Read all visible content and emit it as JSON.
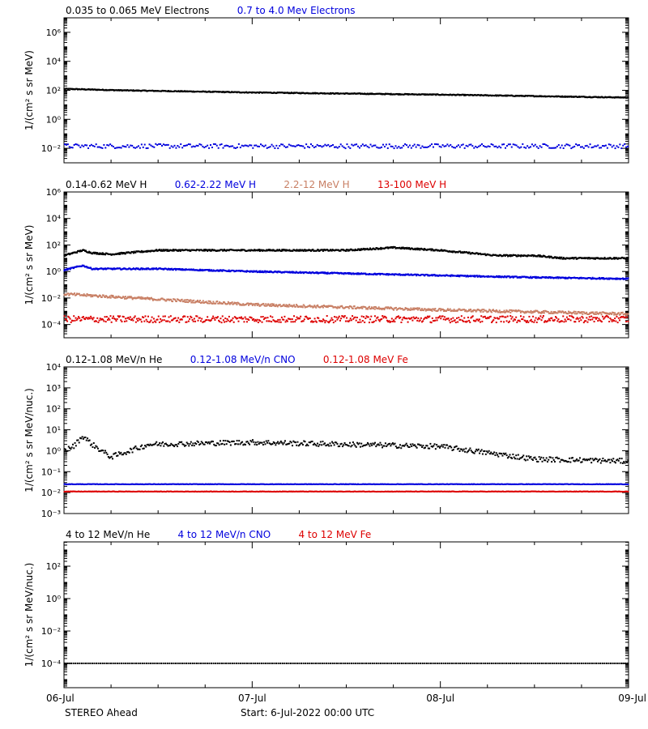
{
  "figure": {
    "footer_left": "STEREO Ahead",
    "footer_start": "Start:  6-Jul-2022 00:00 UTC"
  },
  "colors": {
    "black": "#000000",
    "blue": "#0000dd",
    "tan": "#c87f64",
    "red": "#dd0000"
  },
  "chart_data": [
    {
      "type": "scatter",
      "ylabel": "1/(cm² s sr MeV)",
      "yscale": "log",
      "ylim_exp": [
        -3,
        7
      ],
      "major_ticks_exp": [
        -2,
        0,
        2,
        4,
        6
      ],
      "tick_labels": [
        "10⁻²",
        "10⁰",
        "10²",
        "10⁴",
        "10⁶"
      ],
      "xlim_days": [
        0,
        3
      ],
      "x_tick_labels": [
        "06-Jul",
        "07-Jul",
        "08-Jul",
        "09-Jul"
      ],
      "legend": [
        {
          "name": "0.035 to 0.065 MeV Electrons",
          "color": "#000000"
        },
        {
          "name": "0.7 to 4.0 Mev Electrons",
          "color": "#0000dd"
        }
      ],
      "series": [
        {
          "name": "0.035 to 0.065 MeV Electrons",
          "color": "#000000",
          "points_per_day": 280,
          "jitter": 0.03,
          "log10_profile": [
            [
              0,
              2.1
            ],
            [
              0.3,
              2.0
            ],
            [
              1.0,
              1.85
            ],
            [
              2.0,
              1.7
            ],
            [
              3.0,
              1.5
            ]
          ]
        },
        {
          "name": "0.7 to 4.0 Mev Electrons",
          "color": "#0000dd",
          "points_per_day": 120,
          "jitter": 0.15,
          "log10_profile": [
            [
              0,
              -1.85
            ],
            [
              3.0,
              -1.85
            ]
          ]
        }
      ]
    },
    {
      "type": "scatter",
      "ylabel": "1/(cm² s sr MeV)",
      "yscale": "log",
      "ylim_exp": [
        -5,
        6
      ],
      "major_ticks_exp": [
        -4,
        -2,
        0,
        2,
        4,
        6
      ],
      "tick_labels": [
        "10⁻⁴",
        "10⁻²",
        "10⁰",
        "10²",
        "10⁴",
        "10⁶"
      ],
      "xlim_days": [
        0,
        3
      ],
      "x_tick_labels": [
        "06-Jul",
        "07-Jul",
        "08-Jul",
        "09-Jul"
      ],
      "legend": [
        {
          "name": "0.14-0.62 MeV H",
          "color": "#000000"
        },
        {
          "name": "0.62-2.22 MeV H",
          "color": "#0000dd"
        },
        {
          "name": "2.2-12 MeV H",
          "color": "#c87f64"
        },
        {
          "name": "13-100 MeV H",
          "color": "#dd0000"
        }
      ],
      "series": [
        {
          "name": "0.14-0.62 MeV H",
          "color": "#000000",
          "points_per_day": 280,
          "jitter": 0.06,
          "log10_profile": [
            [
              0,
              1.2
            ],
            [
              0.1,
              1.6
            ],
            [
              0.15,
              1.4
            ],
            [
              0.25,
              1.3
            ],
            [
              0.5,
              1.6
            ],
            [
              1.5,
              1.6
            ],
            [
              1.75,
              1.8
            ],
            [
              2.0,
              1.6
            ],
            [
              2.3,
              1.2
            ],
            [
              2.5,
              1.2
            ],
            [
              2.65,
              1.0
            ],
            [
              3.0,
              1.0
            ]
          ]
        },
        {
          "name": "0.62-2.22 MeV H",
          "color": "#0000dd",
          "points_per_day": 280,
          "jitter": 0.05,
          "log10_profile": [
            [
              0,
              0.1
            ],
            [
              0.1,
              0.45
            ],
            [
              0.15,
              0.2
            ],
            [
              0.5,
              0.2
            ],
            [
              1.0,
              0.0
            ],
            [
              2.0,
              -0.3
            ],
            [
              2.5,
              -0.45
            ],
            [
              3.0,
              -0.55
            ]
          ]
        },
        {
          "name": "2.2-12 MeV H",
          "color": "#c87f64",
          "points_per_day": 240,
          "jitter": 0.1,
          "log10_profile": [
            [
              0,
              -1.7
            ],
            [
              0.5,
              -2.1
            ],
            [
              1.0,
              -2.5
            ],
            [
              2.0,
              -2.9
            ],
            [
              3.0,
              -3.2
            ]
          ]
        },
        {
          "name": "13-100 MeV H",
          "color": "#dd0000",
          "points_per_day": 200,
          "jitter": 0.25,
          "log10_profile": [
            [
              0,
              -3.6
            ],
            [
              3.0,
              -3.6
            ]
          ]
        }
      ]
    },
    {
      "type": "scatter",
      "ylabel": "1/(cm² s sr MeV/nuc.)",
      "yscale": "log",
      "ylim_exp": [
        -3,
        4
      ],
      "major_ticks_exp": [
        -3,
        -2,
        -1,
        0,
        1,
        2,
        3,
        4
      ],
      "tick_labels": [
        "10⁻³",
        "10⁻²",
        "10⁻¹",
        "10⁰",
        "10¹",
        "10²",
        "10³",
        "10⁴"
      ],
      "xlim_days": [
        0,
        3
      ],
      "x_tick_labels": [
        "06-Jul",
        "07-Jul",
        "08-Jul",
        "09-Jul"
      ],
      "legend": [
        {
          "name": "0.12-1.08 MeV/n He",
          "color": "#000000"
        },
        {
          "name": "0.12-1.08 MeV/n CNO",
          "color": "#0000dd"
        },
        {
          "name": "0.12-1.08 MeV Fe",
          "color": "#dd0000"
        }
      ],
      "series": [
        {
          "name": "0.12-1.08 MeV/n He",
          "color": "#000000",
          "points_per_day": 180,
          "jitter": 0.12,
          "log10_profile": [
            [
              0,
              0.0
            ],
            [
              0.05,
              0.2
            ],
            [
              0.1,
              0.7
            ],
            [
              0.15,
              0.3
            ],
            [
              0.25,
              -0.3
            ],
            [
              0.45,
              0.3
            ],
            [
              1.0,
              0.4
            ],
            [
              1.5,
              0.3
            ],
            [
              2.0,
              0.2
            ],
            [
              2.5,
              -0.4
            ],
            [
              3.0,
              -0.5
            ]
          ]
        },
        {
          "name": "0.12-1.08 MeV/n CNO",
          "color": "#0000dd",
          "points_per_day": 200,
          "jitter": 0.01,
          "log10_profile": [
            [
              0,
              -1.6
            ],
            [
              3.0,
              -1.6
            ]
          ]
        },
        {
          "name": "0.12-1.08 MeV Fe",
          "color": "#dd0000",
          "points_per_day": 200,
          "jitter": 0.01,
          "log10_profile": [
            [
              0,
              -1.95
            ],
            [
              3.0,
              -1.95
            ]
          ]
        }
      ]
    },
    {
      "type": "scatter",
      "ylabel": "1/(cm² s sr MeV/nuc.)",
      "yscale": "log",
      "ylim_exp": [
        -5.5,
        3.5
      ],
      "major_ticks_exp": [
        -4,
        -2,
        0,
        2
      ],
      "tick_labels": [
        "10⁻⁴",
        "10⁻²",
        "10⁰",
        "10²"
      ],
      "xlim_days": [
        0,
        3
      ],
      "x_tick_labels": [
        "06-Jul",
        "07-Jul",
        "08-Jul",
        "09-Jul"
      ],
      "legend": [
        {
          "name": "4 to 12 MeV/n He",
          "color": "#000000"
        },
        {
          "name": "4 to 12 MeV/n CNO",
          "color": "#0000dd"
        },
        {
          "name": "4 to 12 MeV Fe",
          "color": "#dd0000"
        }
      ],
      "series": [
        {
          "name": "4 to 12 MeV/n He",
          "color": "#000000",
          "points_per_day": 90,
          "jitter": 0.0,
          "log10_profile": [
            [
              0,
              -4.0
            ],
            [
              3.0,
              -4.0
            ]
          ]
        }
      ]
    }
  ]
}
